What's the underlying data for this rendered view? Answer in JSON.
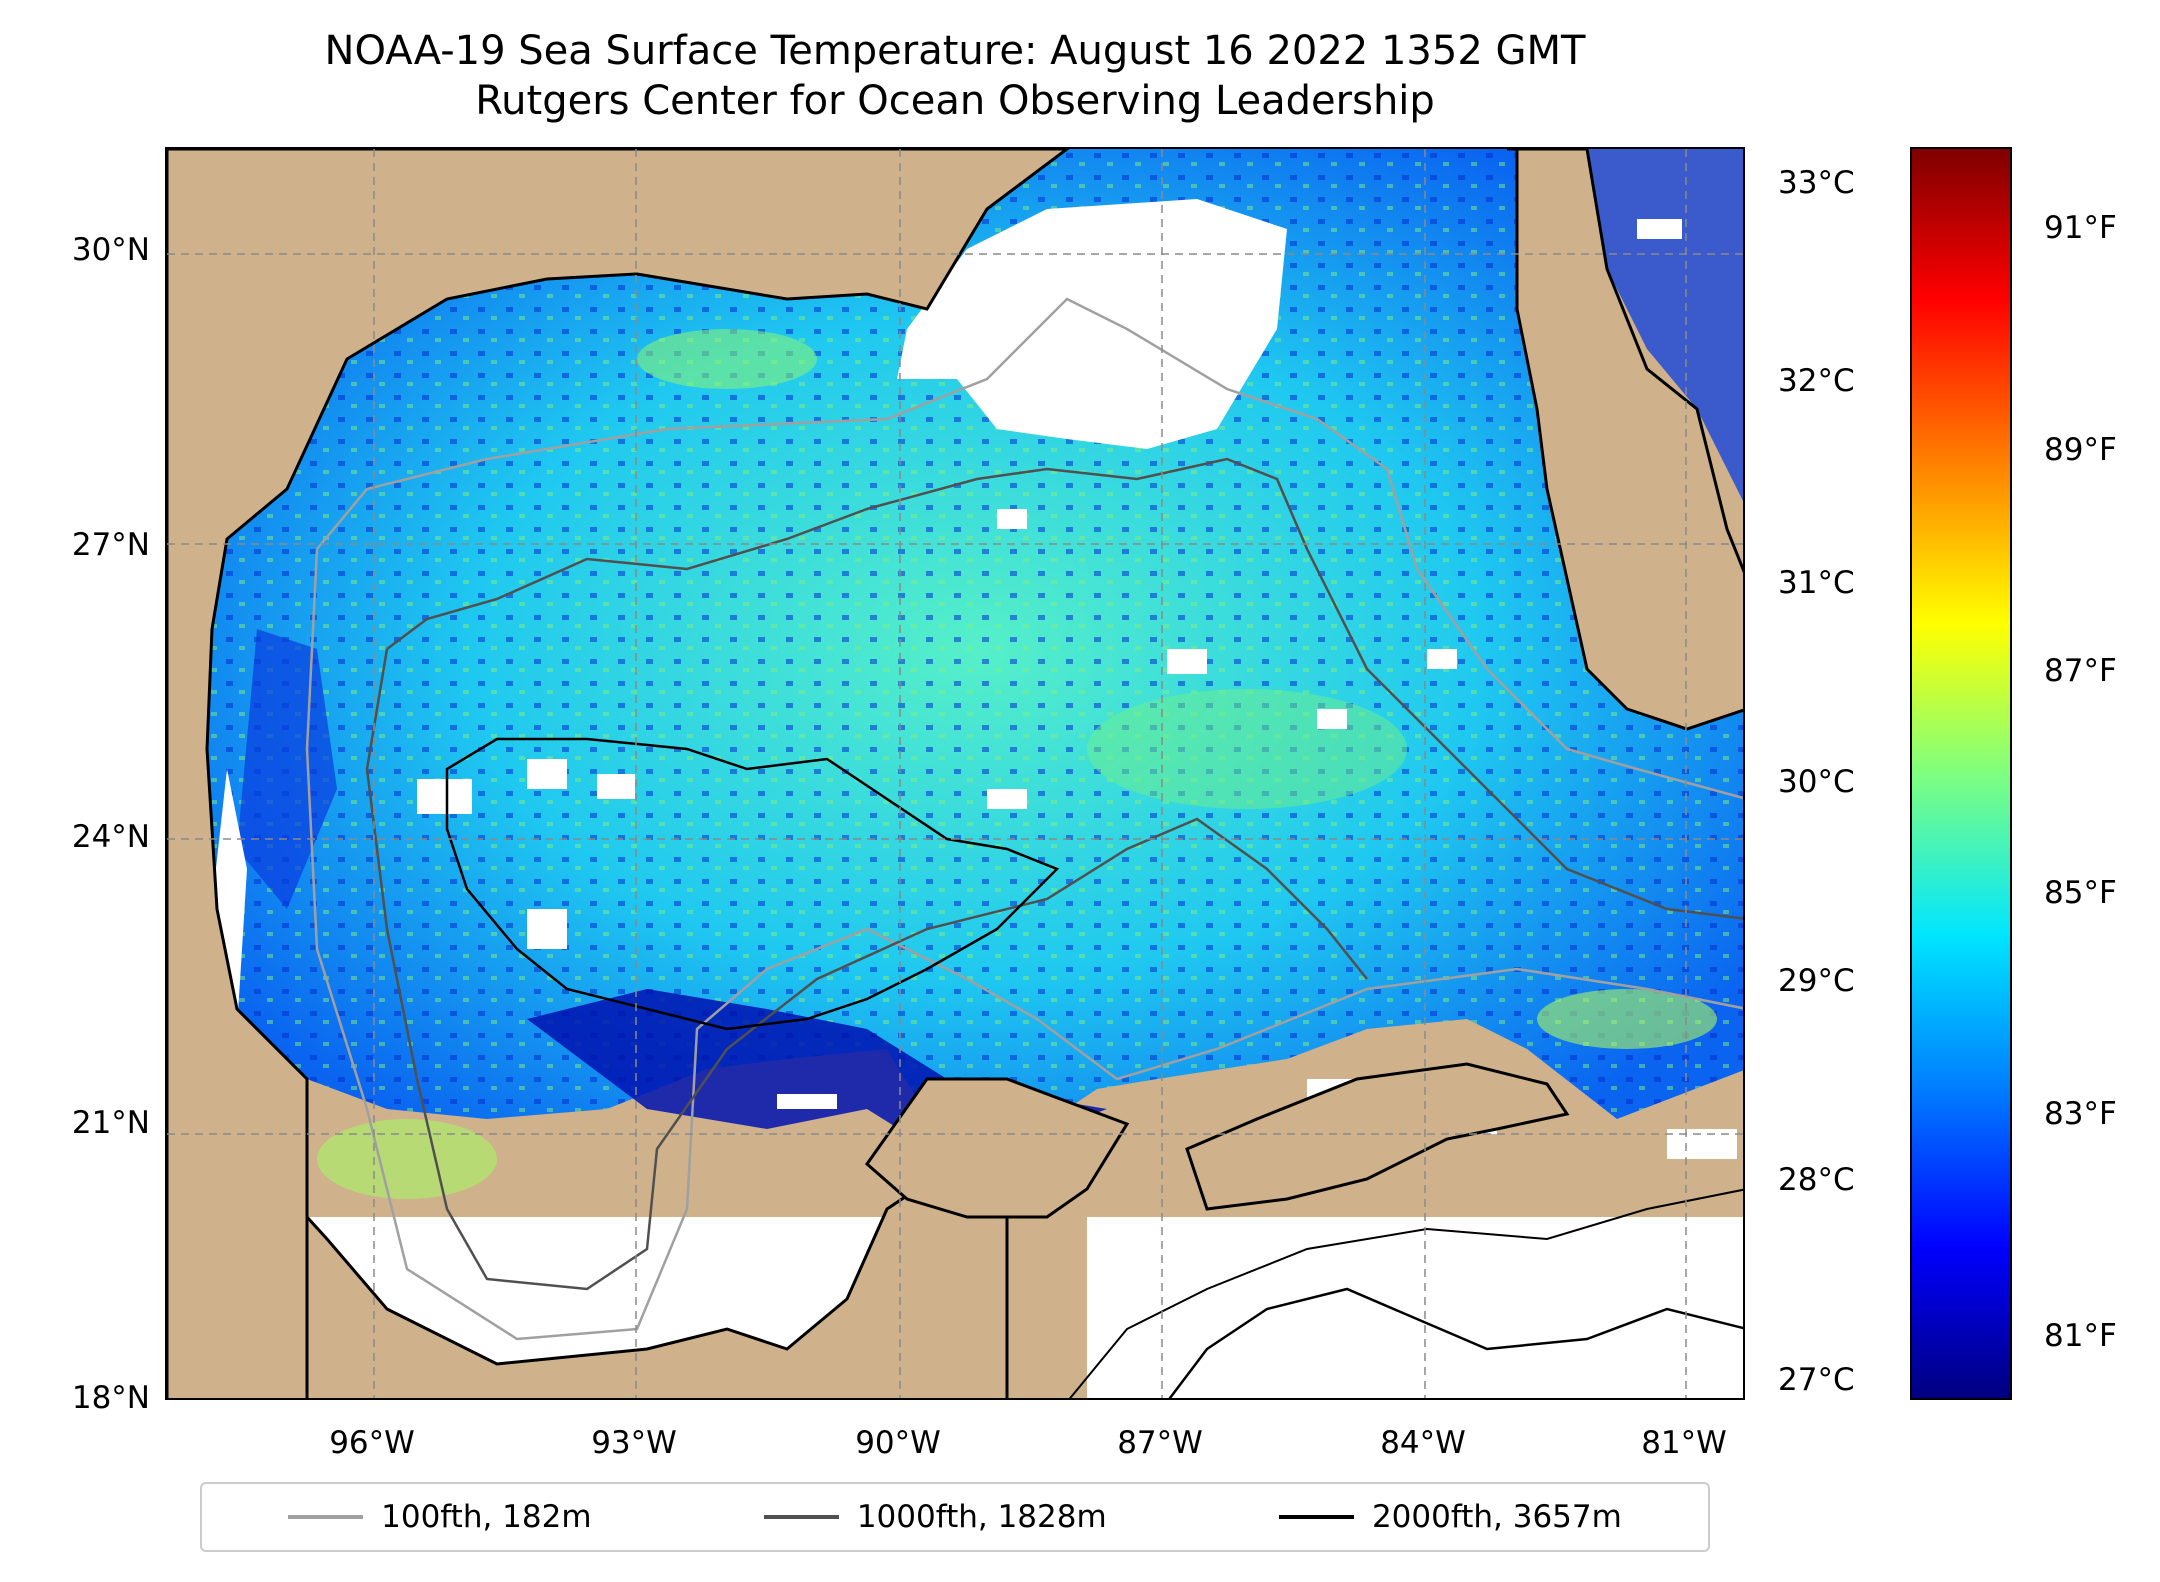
{
  "title": {
    "line1": "NOAA-19 Sea Surface Temperature: August 16 2022 1352 GMT",
    "line2": "Rutgers Center for Ocean Observing Leadership"
  },
  "map": {
    "lat_labels": [
      "30°N",
      "27°N",
      "24°N",
      "21°N",
      "18°N"
    ],
    "lon_labels": [
      "96°W",
      "93°W",
      "90°W",
      "87°W",
      "84°W",
      "81°W"
    ],
    "colors": {
      "land": "#cfb28b",
      "no_data": "#ffffff",
      "coastline": "#000000"
    }
  },
  "legend": {
    "items": [
      {
        "label": "100fth, 182m",
        "color": "#a0a0a0"
      },
      {
        "label": "1000fth, 1828m",
        "color": "#505050"
      },
      {
        "label": "2000fth, 3657m",
        "color": "#000000"
      }
    ]
  },
  "colorbar": {
    "celsius_labels": [
      "33°C",
      "32°C",
      "31°C",
      "30°C",
      "29°C",
      "28°C",
      "27°C"
    ],
    "fahrenheit_labels": [
      "91°F",
      "89°F",
      "87°F",
      "85°F",
      "83°F",
      "81°F"
    ],
    "colormap": "jet"
  }
}
